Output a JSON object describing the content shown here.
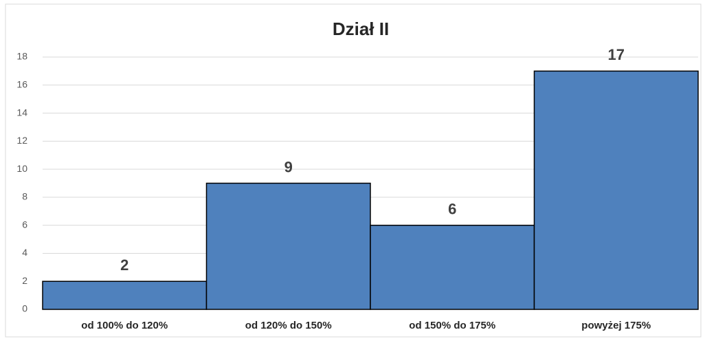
{
  "chart_data": {
    "type": "bar",
    "title": "Dział II",
    "categories": [
      "od 100% do 120%",
      "od 120% do 150%",
      "od 150% do 175%",
      "powyżej 175%"
    ],
    "values": [
      2,
      9,
      6,
      17
    ],
    "color": "#4f81bd",
    "ylim": [
      0,
      18
    ],
    "yticks": [
      0,
      2,
      4,
      6,
      8,
      10,
      12,
      14,
      16,
      18
    ],
    "grid": true
  }
}
